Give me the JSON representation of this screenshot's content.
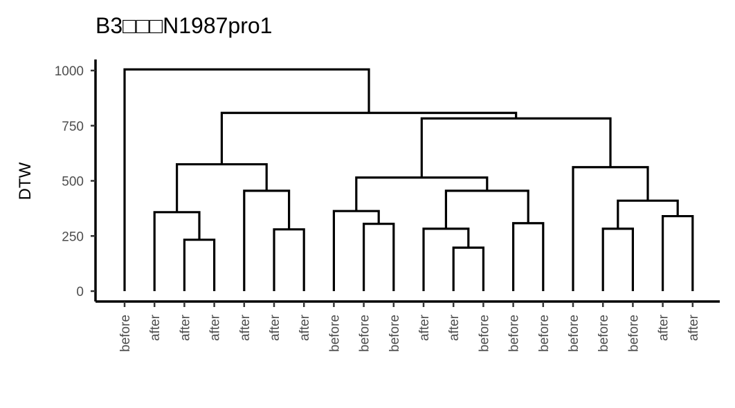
{
  "chart_data": {
    "type": "dendrogram",
    "title": "B3□□□N1987pro1",
    "ylabel": "DTW",
    "xlabel": "",
    "ylim": [
      0,
      1000
    ],
    "yticks": [
      0,
      250,
      500,
      750,
      1000
    ],
    "ytick_labels": [
      "0",
      "250",
      "500",
      "750",
      "1000"
    ],
    "leaf_labels": [
      "before",
      "after",
      "after",
      "after",
      "after",
      "after",
      "after",
      "before",
      "before",
      "before",
      "after",
      "after",
      "before",
      "before",
      "before",
      "before",
      "before",
      "before",
      "after",
      "after"
    ],
    "merges": [
      {
        "left": "L3",
        "right": "L4",
        "height": 233
      },
      {
        "left": "L2",
        "right": "N1",
        "height": 358
      },
      {
        "left": "L6",
        "right": "L7",
        "height": 280
      },
      {
        "left": "L5",
        "right": "N3",
        "height": 455
      },
      {
        "left": "N2",
        "right": "N4",
        "height": 575
      },
      {
        "left": "L9",
        "right": "L10",
        "height": 305
      },
      {
        "left": "L8",
        "right": "N6",
        "height": 363
      },
      {
        "left": "L12",
        "right": "L13",
        "height": 197
      },
      {
        "left": "L11",
        "right": "N8",
        "height": 283
      },
      {
        "left": "L14",
        "right": "L15",
        "height": 308
      },
      {
        "left": "N9",
        "right": "N10",
        "height": 455
      },
      {
        "left": "N7",
        "right": "N11",
        "height": 515
      },
      {
        "left": "L17",
        "right": "L18",
        "height": 283
      },
      {
        "left": "L19",
        "right": "L20",
        "height": 340
      },
      {
        "left": "N13",
        "right": "N14",
        "height": 410
      },
      {
        "left": "L16",
        "right": "N15",
        "height": 562
      },
      {
        "left": "N12",
        "right": "N16",
        "height": 783
      },
      {
        "left": "N5",
        "right": "N17",
        "height": 808
      },
      {
        "left": "L1",
        "right": "N18",
        "height": 1005
      }
    ]
  }
}
